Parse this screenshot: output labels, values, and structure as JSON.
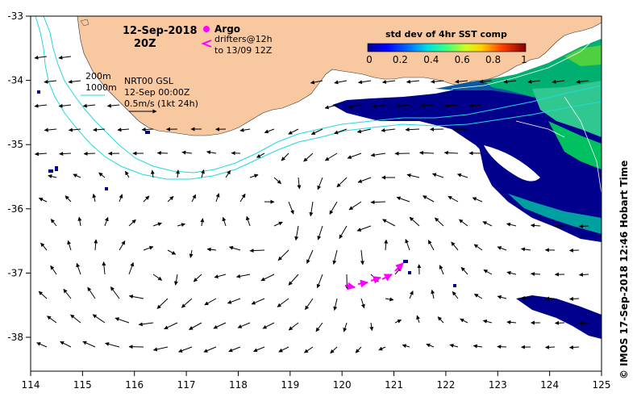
{
  "date_title": "12-Sep-2018",
  "time_title": "20Z",
  "argo_label": "Argo",
  "drifters_label": "drifters@12h",
  "drifters_sublabel": "to 13/09 12Z",
  "contour_200": "200m",
  "contour_1000": "1000m",
  "current_product": "NRT00 GSL",
  "current_date": "12-Sep 00:00Z",
  "current_scale": "0.5m/s (1kt 24h)",
  "colorbar_title": "std dev of 4hr SST comp",
  "colorbar_ticks": [
    "0",
    "0.2",
    "0.4",
    "0.6",
    "0.8",
    "1"
  ],
  "credit": "© IMOS 17-Sep-2018 12:46 Hobart Time",
  "x_ticks": [
    "114",
    "115",
    "116",
    "117",
    "118",
    "119",
    "120",
    "121",
    "122",
    "123",
    "124",
    "125"
  ],
  "y_ticks": [
    "-33",
    "-34",
    "-35",
    "-36",
    "-37",
    "-38"
  ],
  "colors": {
    "land": "#f8c8a0",
    "contour": "#22d8e0",
    "drifter": "#ff00ff",
    "sst_low": "#00008c",
    "sst_mid": "#00b070",
    "sst_high": "#a8d820"
  }
}
